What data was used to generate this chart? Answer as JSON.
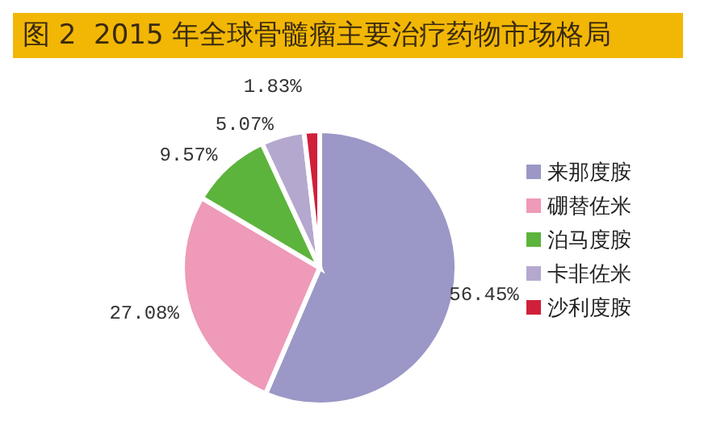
{
  "chart_data": {
    "type": "pie",
    "title": "图 2  2015 年全球骨髓瘤主要治疗药物市场格局",
    "categories": [
      "来那度胺",
      "硼替佐米",
      "泊马度胺",
      "卡非佐米",
      "沙利度胺"
    ],
    "values": [
      56.45,
      27.08,
      9.57,
      5.07,
      1.83
    ],
    "colors": [
      "#9b97c6",
      "#ee9ab8",
      "#5cb43c",
      "#b5a8cf",
      "#d0203a"
    ],
    "value_labels": [
      "56.45%",
      "27.08%",
      "9.57%",
      "5.07%",
      "1.83%"
    ],
    "legend": "right"
  }
}
